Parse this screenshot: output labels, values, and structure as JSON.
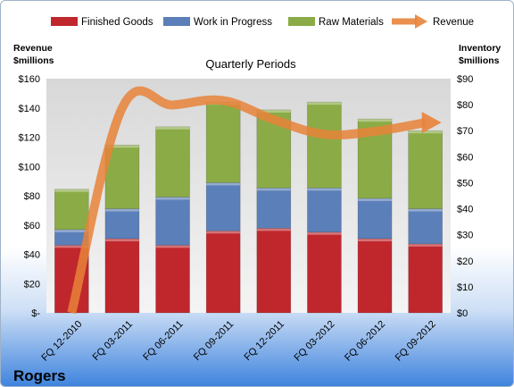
{
  "chart_data": {
    "type": "bar",
    "title": "Quarterly Periods",
    "company": "Rogers",
    "left_axis_title": [
      "Revenue",
      "$millions"
    ],
    "right_axis_title": [
      "Inventory",
      "$millions"
    ],
    "categories": [
      "FQ 12-2010",
      "FQ 03-2011",
      "FQ 06-2011",
      "FQ 09-2011",
      "FQ 12-2011",
      "FQ 03-2012",
      "FQ 06-2012",
      "FQ 09-2012"
    ],
    "left_ticks": [
      "$-",
      "$20",
      "$40",
      "$60",
      "$80",
      "$100",
      "$120",
      "$140",
      "$160"
    ],
    "right_ticks": [
      "$0",
      "$10",
      "$20",
      "$30",
      "$40",
      "$50",
      "$60",
      "$70",
      "$80",
      "$90"
    ],
    "left_range": [
      0,
      160
    ],
    "right_range": [
      0,
      90
    ],
    "stacked": true,
    "legend_position": "top",
    "grid": false,
    "series": [
      {
        "name": "Finished Goods",
        "axis": "right",
        "type": "bar",
        "color": "#c0272d",
        "values": [
          26,
          28.5,
          26,
          31.5,
          32.5,
          31,
          28.5,
          26.5
        ]
      },
      {
        "name": "Work in Progress",
        "axis": "right",
        "type": "bar",
        "color": "#5b7fb8",
        "values": [
          6,
          11.5,
          18.5,
          18.5,
          15.5,
          17,
          15.5,
          13.5
        ]
      },
      {
        "name": "Raw Materials",
        "axis": "right",
        "type": "bar",
        "color": "#8aab46",
        "values": [
          15.5,
          24.5,
          27,
          31,
          30,
          33,
          30.5,
          30
        ]
      },
      {
        "name": "Revenue",
        "axis": "left",
        "type": "line",
        "color": "#e8833a",
        "values": [
          0,
          140,
          142,
          145,
          132,
          122,
          124,
          130
        ]
      }
    ]
  }
}
